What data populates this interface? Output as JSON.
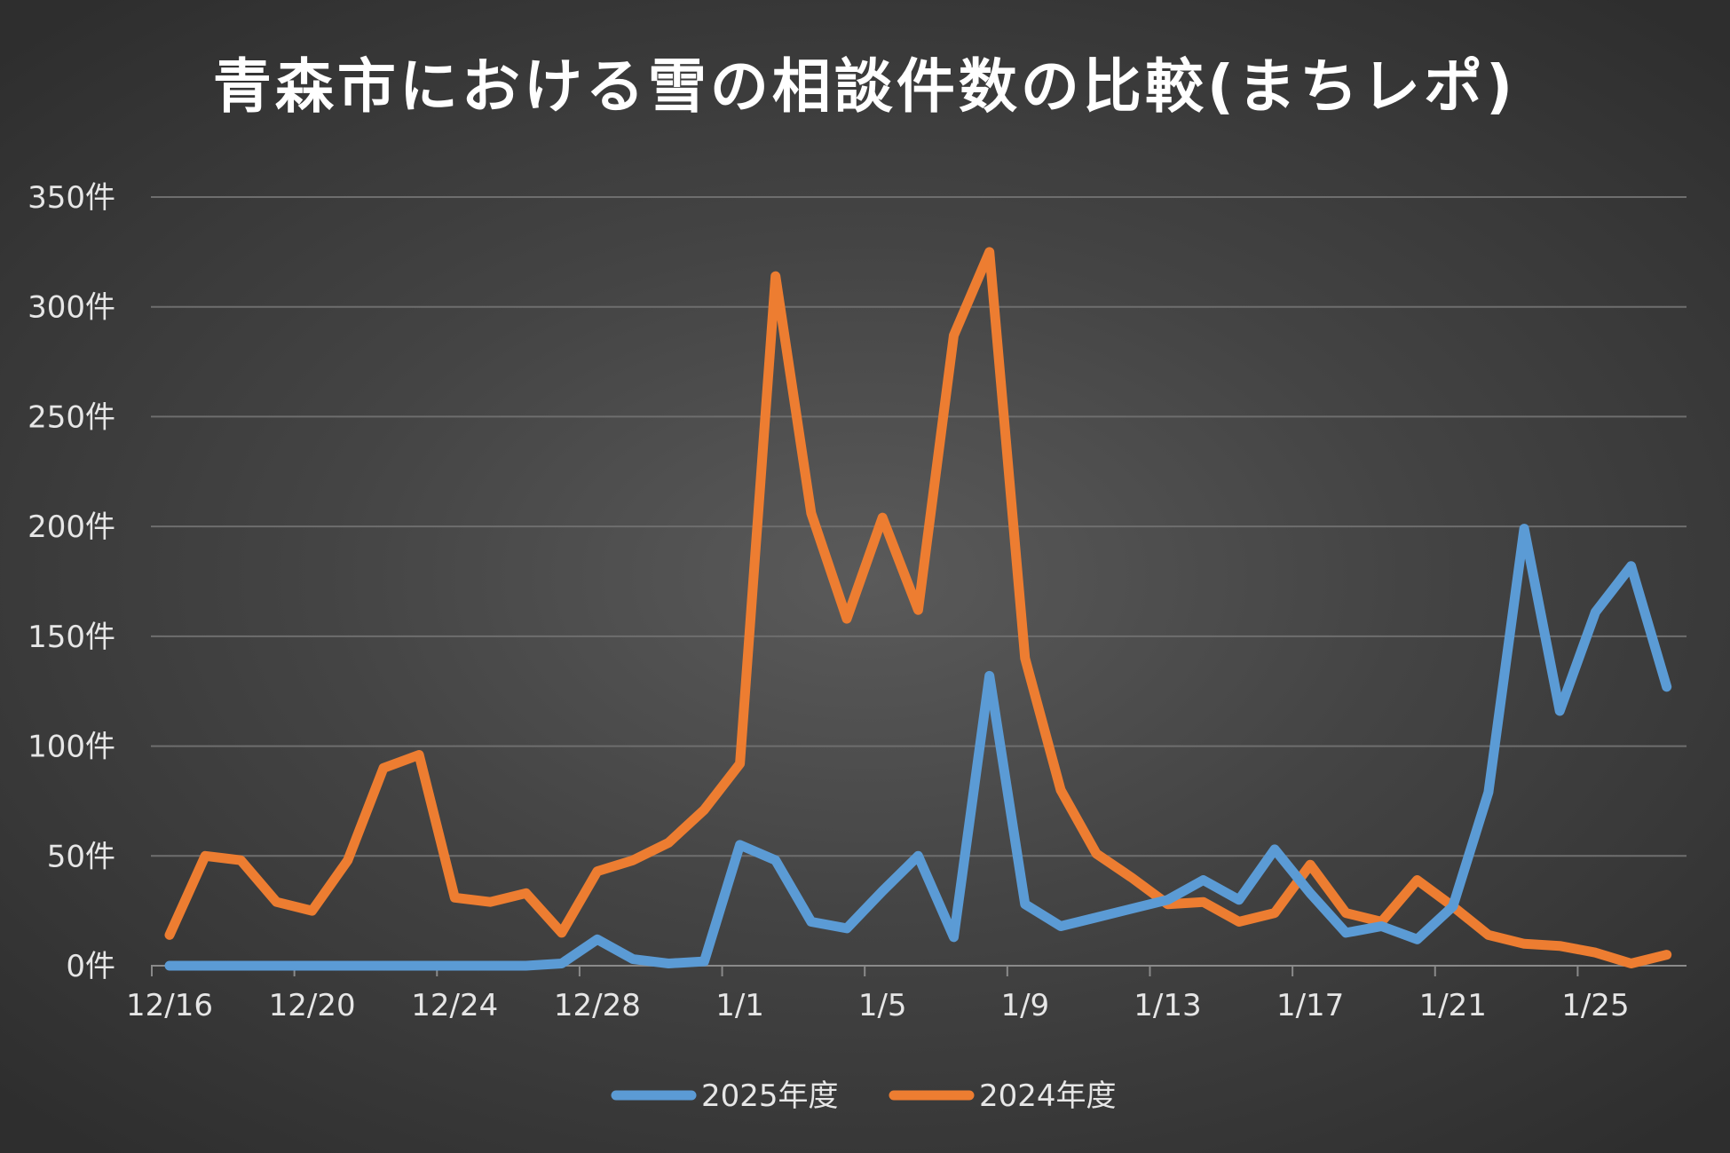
{
  "chart_data": {
    "type": "line",
    "title": "青森市における雪の相談件数の比較(まちレポ)",
    "xlabel": "",
    "ylabel": "",
    "ylim": [
      0,
      350
    ],
    "y_ticks": [
      0,
      50,
      100,
      150,
      200,
      250,
      300,
      350
    ],
    "y_tick_suffix": "件",
    "y_tick_labels": [
      "0件",
      "50件",
      "100件",
      "150件",
      "200件",
      "250件",
      "300件",
      "350件"
    ],
    "grid": true,
    "legend_position": "bottom",
    "categories": [
      "12/16",
      "12/17",
      "12/18",
      "12/19",
      "12/20",
      "12/21",
      "12/22",
      "12/23",
      "12/24",
      "12/25",
      "12/26",
      "12/27",
      "12/28",
      "12/29",
      "12/30",
      "12/31",
      "1/1",
      "1/2",
      "1/3",
      "1/4",
      "1/5",
      "1/6",
      "1/7",
      "1/8",
      "1/9",
      "1/10",
      "1/11",
      "1/12",
      "1/13",
      "1/14",
      "1/15",
      "1/16",
      "1/17",
      "1/18",
      "1/19",
      "1/20",
      "1/21",
      "1/22",
      "1/23",
      "1/24",
      "1/25",
      "1/26",
      "1/27"
    ],
    "x_tick_labels": [
      "12/16",
      "12/20",
      "12/24",
      "12/28",
      "1/1",
      "1/5",
      "1/9",
      "1/13",
      "1/17",
      "1/21",
      "1/25"
    ],
    "series": [
      {
        "name": "2025年度",
        "color": "#5b9bd5",
        "values": [
          0,
          0,
          0,
          0,
          0,
          0,
          0,
          0,
          0,
          0,
          0,
          1,
          12,
          3,
          1,
          2,
          55,
          48,
          20,
          17,
          34,
          50,
          13,
          132,
          28,
          18,
          22,
          26,
          30,
          39,
          30,
          53,
          33,
          15,
          18,
          12,
          27,
          79,
          199,
          116,
          161,
          182,
          127
        ]
      },
      {
        "name": "2024年度",
        "color": "#ed7d31",
        "values": [
          14,
          50,
          48,
          29,
          25,
          48,
          90,
          96,
          31,
          29,
          33,
          15,
          43,
          48,
          56,
          71,
          92,
          314,
          206,
          158,
          204,
          162,
          287,
          325,
          140,
          80,
          51,
          40,
          28,
          29,
          20,
          24,
          46,
          24,
          20,
          39,
          27,
          14,
          10,
          9,
          6,
          1,
          5
        ]
      }
    ]
  }
}
